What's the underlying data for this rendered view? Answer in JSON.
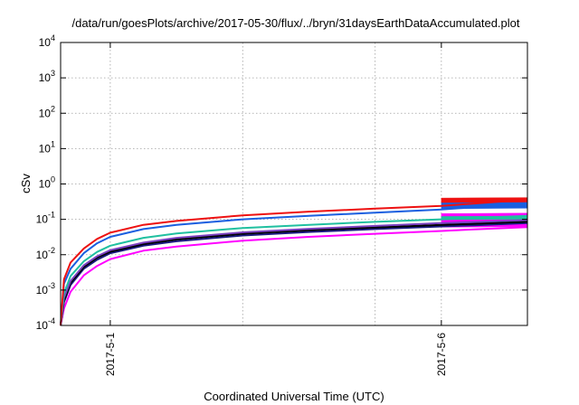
{
  "chart_data": {
    "type": "line",
    "title": "/data/run/goesPlots/archive/2017-05-30/flux/../bryn/31daysEarthDataAccumulated.plot",
    "xlabel": "Coordinated Universal Time (UTC)",
    "ylabel": "cSv",
    "yscale": "log",
    "ylim": [
      0.0001,
      10000
    ],
    "xlim_days": [
      -0.75,
      6.3
    ],
    "grid": true,
    "legend": "none",
    "y_ticks": [
      {
        "value": 0.0001,
        "base": "10",
        "exp": "-4"
      },
      {
        "value": 0.001,
        "base": "10",
        "exp": "-3"
      },
      {
        "value": 0.01,
        "base": "10",
        "exp": "-2"
      },
      {
        "value": 0.1,
        "base": "10",
        "exp": "-1"
      },
      {
        "value": 1,
        "base": "10",
        "exp": "0"
      },
      {
        "value": 10,
        "base": "10",
        "exp": "1"
      },
      {
        "value": 100,
        "base": "10",
        "exp": "2"
      },
      {
        "value": 1000,
        "base": "10",
        "exp": "3"
      },
      {
        "value": 10000,
        "base": "10",
        "exp": "4"
      }
    ],
    "x_ticks": [
      {
        "label": "2017-5-1",
        "day": 0
      },
      {
        "label": "2017-5-6",
        "day": 5
      }
    ],
    "x_grid_days": [
      0,
      2,
      4,
      5
    ],
    "x": [
      -0.75,
      -0.7,
      -0.6,
      -0.4,
      -0.2,
      0,
      0.5,
      1,
      2,
      3,
      4,
      5,
      5.5,
      6.3
    ],
    "band_start_day": 5,
    "series": [
      {
        "color": "#ee1111",
        "values": [
          0.0001,
          0.002,
          0.006,
          0.015,
          0.028,
          0.042,
          0.07,
          0.09,
          0.13,
          0.165,
          0.2,
          0.24,
          0.28,
          0.36
        ],
        "band": [
          0.3,
          0.4
        ]
      },
      {
        "color": "#1a5fe0",
        "values": [
          0.0001,
          0.0015,
          0.004,
          0.011,
          0.021,
          0.032,
          0.053,
          0.07,
          0.1,
          0.125,
          0.155,
          0.19,
          0.22,
          0.28
        ],
        "band": [
          0.2,
          0.3
        ]
      },
      {
        "color": "#20c0a0",
        "values": [
          0.0001,
          0.0008,
          0.0025,
          0.0065,
          0.012,
          0.018,
          0.03,
          0.04,
          0.057,
          0.07,
          0.085,
          0.1,
          0.108,
          0.125
        ],
        "band": [
          0.098,
          0.12
        ]
      },
      {
        "color": "#7a40c0",
        "values": [
          0.0001,
          0.0006,
          0.0018,
          0.005,
          0.009,
          0.0135,
          0.022,
          0.03,
          0.043,
          0.054,
          0.065,
          0.078,
          0.084,
          0.095
        ],
        "band": null
      },
      {
        "color": "#000000",
        "values": [
          0.0001,
          0.0005,
          0.0016,
          0.0045,
          0.0082,
          0.0122,
          0.02,
          0.027,
          0.039,
          0.049,
          0.059,
          0.07,
          0.075,
          0.086
        ],
        "band": null
      },
      {
        "color": "#1a1a80",
        "values": [
          0.0001,
          0.00045,
          0.0014,
          0.004,
          0.0072,
          0.011,
          0.018,
          0.024,
          0.035,
          0.044,
          0.053,
          0.063,
          0.068,
          0.078
        ],
        "band": null
      },
      {
        "color": "#ff00ff",
        "values": [
          0.0001,
          0.0003,
          0.0009,
          0.0026,
          0.0048,
          0.0075,
          0.013,
          0.017,
          0.025,
          0.032,
          0.039,
          0.047,
          0.052,
          0.06
        ],
        "band": [
          0.06,
          0.145
        ]
      }
    ]
  }
}
